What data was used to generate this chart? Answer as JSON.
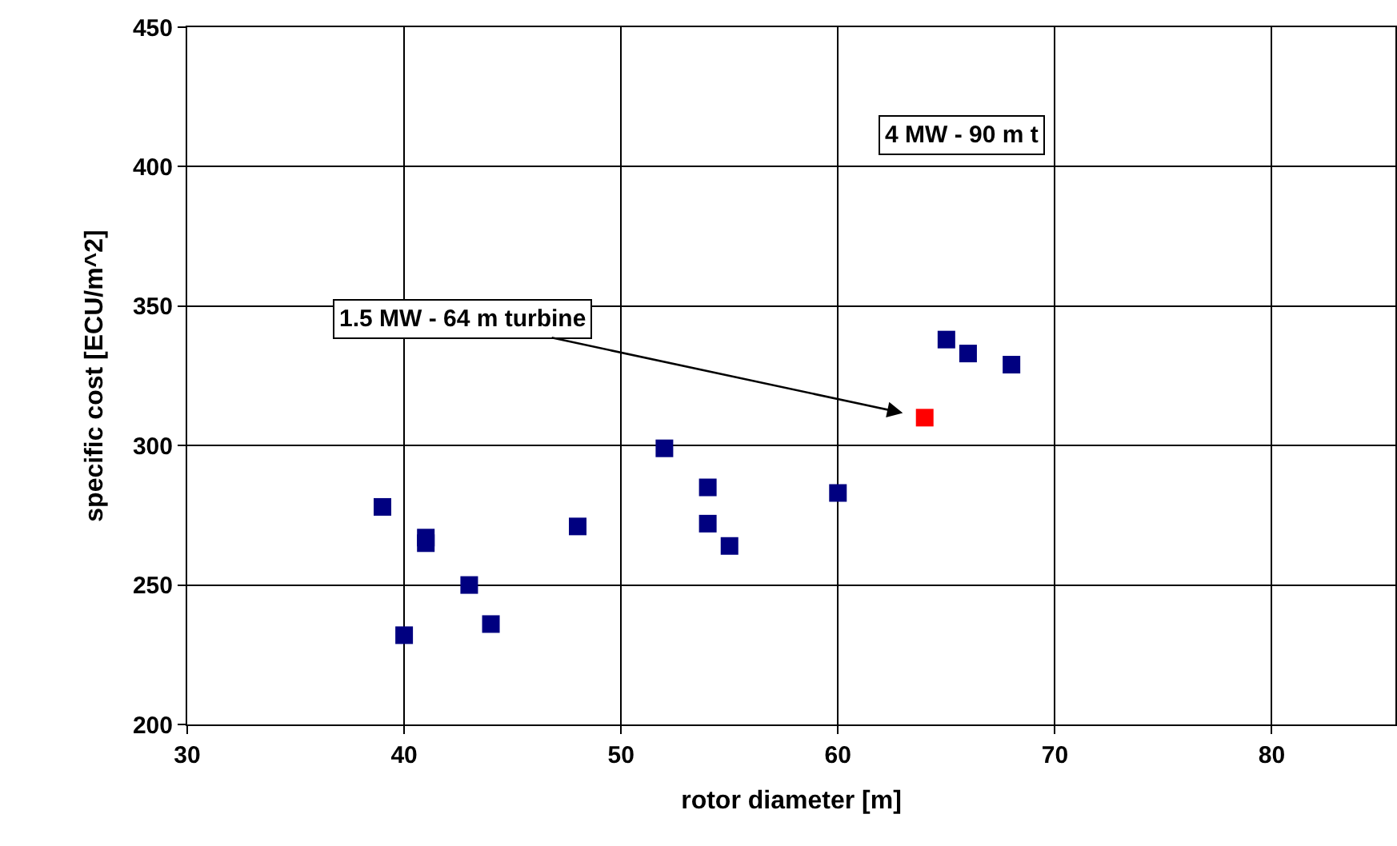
{
  "chart_data": {
    "type": "scatter",
    "xlabel": "rotor diameter [m]",
    "ylabel": "specific cost [ECU/m^2]",
    "xlim": [
      30,
      85.7
    ],
    "xticks": [
      30,
      40,
      50,
      60,
      70,
      80
    ],
    "ylim": [
      200,
      450
    ],
    "yticks": [
      200,
      250,
      300,
      350,
      400,
      450
    ],
    "grid": true,
    "marker": "square",
    "series": [
      {
        "color": "#000080",
        "x": [
          39,
          40,
          41,
          41,
          43,
          44,
          48,
          52,
          54,
          54,
          55,
          60,
          65,
          66,
          68
        ],
        "values": [
          278,
          232,
          267,
          265,
          250,
          236,
          271,
          299,
          285,
          272,
          264,
          283,
          338,
          333,
          329
        ]
      },
      {
        "color": "#ff0000",
        "x": [
          64
        ],
        "values": [
          310
        ]
      }
    ],
    "annotations": [
      {
        "text": "1.5 MW - 64 m turbine",
        "x": 64,
        "y": 310
      },
      "4 MW - 90 m t"
    ]
  }
}
